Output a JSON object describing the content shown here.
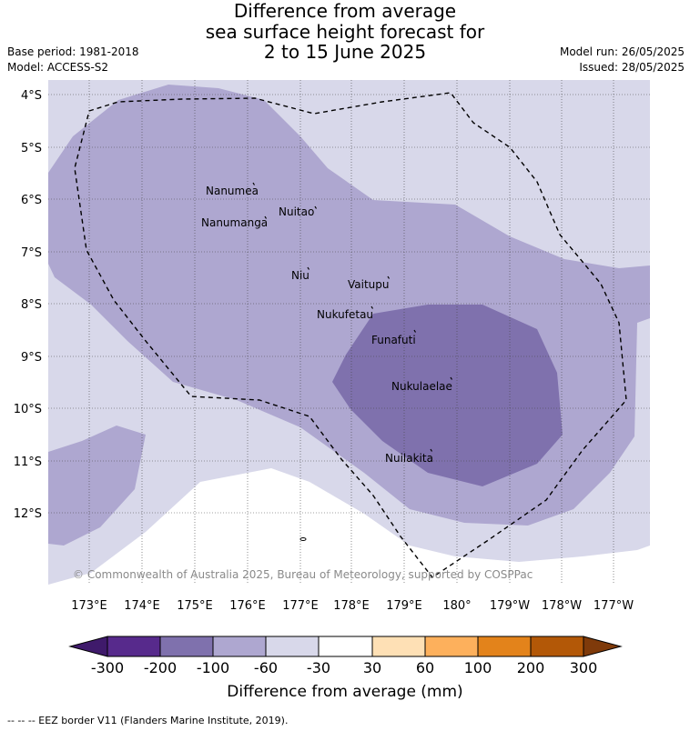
{
  "title": {
    "line1": "Difference from average",
    "line2": "sea surface height forecast for",
    "line3": "2 to 15 June 2025"
  },
  "left_meta": {
    "base_period": "Base period: 1981-2018",
    "model": "Model: ACCESS-S2"
  },
  "right_meta": {
    "model_run": "Model run: 26/05/2025",
    "issued": "Issued: 28/05/2025"
  },
  "map": {
    "lat_labels": [
      "4°S",
      "5°S",
      "6°S",
      "7°S",
      "8°S",
      "9°S",
      "10°S",
      "11°S",
      "12°S"
    ],
    "lon_labels": [
      "173°E",
      "174°E",
      "175°E",
      "176°E",
      "177°E",
      "178°E",
      "179°E",
      "180°",
      "179°W",
      "178°W",
      "177°W"
    ],
    "places": [
      {
        "name": "Nanumea"
      },
      {
        "name": "Nuitao"
      },
      {
        "name": "Nanumanga"
      },
      {
        "name": "Niu"
      },
      {
        "name": "Vaitupu"
      },
      {
        "name": "Nukufetau"
      },
      {
        "name": "Funafuti"
      },
      {
        "name": "Nukulaelae"
      },
      {
        "name": "Nuilakita"
      }
    ],
    "copyright": "© Commonwealth of Australia 2025, Bureau of Meteorology, supported by COSPPac"
  },
  "colorbar": {
    "ticks": [
      "-300",
      "-200",
      "-100",
      "-60",
      "-30",
      "30",
      "60",
      "100",
      "200",
      "300"
    ],
    "colors": [
      "#3f1a6b",
      "#572a8c",
      "#7f71ad",
      "#aea7d0",
      "#d8d8ea",
      "#ffffff",
      "#fee0b5",
      "#fdb05c",
      "#e3831b",
      "#b35807",
      "#7f3a0a"
    ],
    "title": "Difference from average (mm)"
  },
  "footer": "-- -- -- EEZ border V11 (Flanders Marine Institute, 2019)."
}
